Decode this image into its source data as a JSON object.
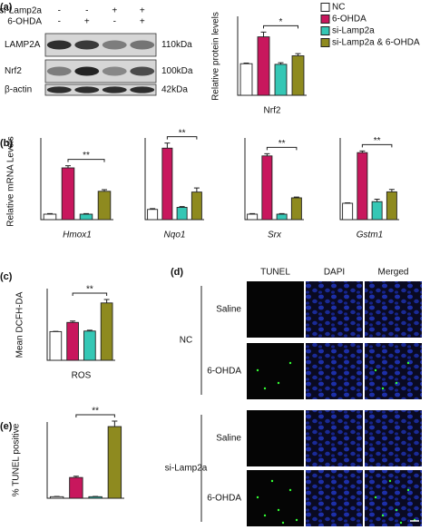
{
  "panels": [
    "(a)",
    "(b)",
    "(c)",
    "(d)",
    "(e)"
  ],
  "blot": {
    "treatments": [
      {
        "label": "si-Lamp2a",
        "signs": [
          "-",
          "-",
          "+",
          "+"
        ]
      },
      {
        "label": "6-OHDA",
        "signs": [
          "-",
          "+",
          "-",
          "+"
        ]
      }
    ],
    "bands": [
      {
        "label": "LAMP2A",
        "size": "110kDa"
      },
      {
        "label": "Nrf2",
        "size": "100kDa"
      },
      {
        "label": "β-actin",
        "size": "42kDa"
      }
    ]
  },
  "chart_data": [
    {
      "type": "bar",
      "x_label": "Nrf2",
      "y_label": "Relative protein levels",
      "values": [
        1.0,
        1.85,
        0.98,
        1.25
      ],
      "errors": [
        0.02,
        0.15,
        0.05,
        0.07
      ],
      "colors": [
        "#ffffff",
        "#c8175d",
        "#35c7b5",
        "#8e8a1f"
      ],
      "ylim": [
        0,
        2.5
      ],
      "annotation": "*",
      "legend": [
        "NC",
        "6-OHDA",
        "si-Lamp2a",
        "si-Lamp2a & 6-OHDA"
      ]
    },
    {
      "type": "bar",
      "x_label": "Hmox1",
      "italic": true,
      "y_label": "Relative mRNA Levels",
      "values": [
        1,
        9.5,
        1,
        5.2
      ],
      "errors": [
        0.1,
        0.4,
        0.1,
        0.3
      ],
      "colors": [
        "#ffffff",
        "#c8175d",
        "#35c7b5",
        "#8e8a1f"
      ],
      "ylim": [
        0,
        15
      ],
      "annotation": "**"
    },
    {
      "type": "bar",
      "x_label": "Nqo1",
      "italic": true,
      "values": [
        1,
        7,
        1.2,
        2.7
      ],
      "errors": [
        0.08,
        0.5,
        0.08,
        0.4
      ],
      "colors": [
        "#ffffff",
        "#c8175d",
        "#35c7b5",
        "#8e8a1f"
      ],
      "ylim": [
        0,
        8
      ],
      "annotation": "**"
    },
    {
      "type": "bar",
      "x_label": "Srx",
      "italic": true,
      "values": [
        1,
        11.7,
        1,
        4
      ],
      "errors": [
        0.1,
        0.4,
        0.1,
        0.15
      ],
      "colors": [
        "#ffffff",
        "#c8175d",
        "#35c7b5",
        "#8e8a1f"
      ],
      "ylim": [
        0,
        15
      ],
      "annotation": "**"
    },
    {
      "type": "bar",
      "x_label": "Gstm1",
      "italic": true,
      "values": [
        1,
        4.1,
        1.1,
        1.7
      ],
      "errors": [
        0.03,
        0.1,
        0.15,
        0.15
      ],
      "colors": [
        "#ffffff",
        "#c8175d",
        "#35c7b5",
        "#8e8a1f"
      ],
      "ylim": [
        0,
        5
      ],
      "annotation": "**"
    },
    {
      "type": "bar",
      "x_label": "ROS",
      "y_label": "Mean DCFH-DA",
      "values": [
        1,
        1.32,
        1.02,
        2.0
      ],
      "errors": [
        0.01,
        0.05,
        0.03,
        0.12
      ],
      "colors": [
        "#ffffff",
        "#c8175d",
        "#35c7b5",
        "#8e8a1f"
      ],
      "ylim": [
        0,
        2.5
      ],
      "annotation": "**"
    },
    {
      "type": "bar",
      "y_label": "% TUNEL positive",
      "values": [
        0.5,
        6.8,
        0.5,
        23.5
      ],
      "errors": [
        0.1,
        0.4,
        0.1,
        1.8
      ],
      "colors": [
        "#ffffff",
        "#c8175d",
        "#35c7b5",
        "#8e8a1f"
      ],
      "ylim": [
        0,
        25
      ],
      "annotation": "**"
    }
  ],
  "microscopy": {
    "columns": [
      "TUNEL",
      "DAPI",
      "Merged"
    ],
    "groups": [
      {
        "label": "NC",
        "rows": [
          "Saline",
          "6-OHDA"
        ]
      },
      {
        "label": "si-Lamp2a",
        "rows": [
          "Saline",
          "6-OHDA"
        ]
      }
    ]
  }
}
